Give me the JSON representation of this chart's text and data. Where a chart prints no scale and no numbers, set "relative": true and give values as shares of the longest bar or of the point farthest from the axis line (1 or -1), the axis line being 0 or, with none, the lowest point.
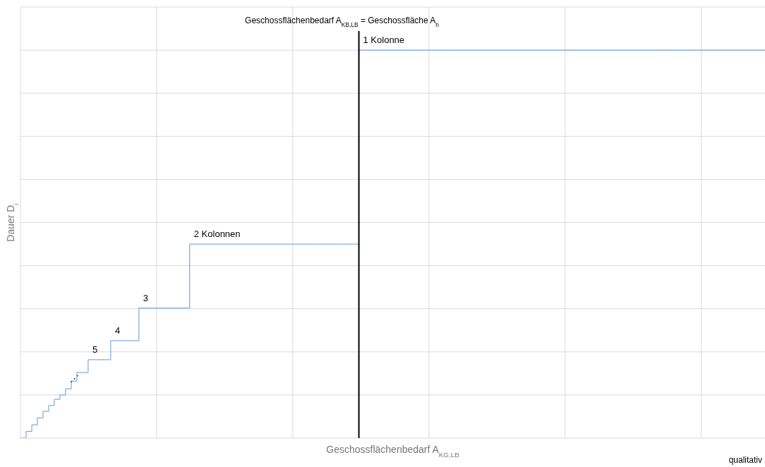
{
  "chart_data": {
    "type": "step",
    "relative": true,
    "xlabel": "Geschossflächenbedarf A$_{KG,LB}$",
    "ylabel": "Dauer D$_{i}$",
    "grid": true,
    "color": "#5b9bd5",
    "categories": [
      null,
      null,
      null,
      null,
      null,
      null,
      null,
      null,
      null,
      null,
      null,
      null,
      null,
      null,
      null,
      null,
      null,
      null,
      null,
      null,
      null,
      null,
      null,
      null,
      null,
      null,
      null,
      null,
      null,
      null,
      null,
      null,
      null,
      null,
      null,
      null,
      null,
      null,
      null,
      null,
      null,
      null,
      null,
      null,
      null,
      null,
      null,
      null,
      null,
      null,
      null,
      null,
      null,
      null,
      null,
      null,
      null,
      null,
      null,
      null,
      null,
      null,
      null,
      null,
      null,
      null,
      null,
      null,
      null,
      null,
      null,
      null,
      null,
      null,
      null,
      null,
      null,
      null,
      null,
      null,
      null,
      null,
      null,
      null,
      null,
      null,
      null,
      null,
      null,
      null,
      null,
      null,
      null,
      null,
      null,
      null,
      null,
      null,
      null,
      null,
      null,
      null,
      null,
      null,
      null,
      null,
      null,
      null,
      null,
      null,
      null,
      null,
      null,
      null,
      null,
      null,
      null,
      null,
      null,
      null,
      null,
      null,
      null,
      null,
      null,
      null,
      null,
      null,
      null,
      null,
      null,
      null,
      null
    ],
    "values": [
      0,
      0.017,
      0.034,
      0.052,
      0.069,
      0.084,
      0.1,
      0.111,
      0.127,
      0.147,
      0.169,
      0.169,
      0.202,
      0.202,
      0.202,
      0.202,
      0.251,
      0.251,
      0.251,
      0.251,
      0.251,
      0.335,
      0.335,
      0.335,
      0.335,
      0.335,
      0.335,
      0.335,
      0.335,
      0.335,
      0.5,
      0.5,
      0.5,
      0.5,
      0.5,
      0.5,
      0.5,
      0.5,
      0.5,
      0.5,
      0.5,
      0.5,
      0.5,
      0.5,
      0.5,
      0.5,
      0.5,
      0.5,
      0.5,
      0.5,
      0.5,
      0.5,
      0.5,
      0.5,
      0.5,
      0.5,
      0.5,
      0.5,
      0.5,
      0.5,
      1,
      1,
      1,
      1,
      1,
      1,
      1,
      1,
      1,
      1,
      1,
      1,
      1,
      1,
      1,
      1,
      1,
      1,
      1,
      1,
      1,
      1,
      1,
      1,
      1,
      1,
      1,
      1,
      1,
      1,
      1,
      1,
      1,
      1,
      1,
      1,
      1,
      1,
      1,
      1,
      1,
      1,
      1,
      1,
      1,
      1,
      1,
      1,
      1,
      1,
      1,
      1,
      1,
      1,
      1,
      1,
      1,
      1,
      1,
      1,
      1,
      1,
      1,
      1,
      1,
      1,
      1,
      1,
      1,
      1,
      1,
      1,
      1
    ],
    "annotations": [
      {
        "text": "1 Kolonne",
        "y": 1
      },
      {
        "text": "2 Kolonnen",
        "y": 0.5
      },
      {
        "text": "3",
        "y": 0.335
      },
      {
        "text": "4",
        "y": 0.251
      },
      {
        "text": "5",
        "y": 0.202
      },
      {
        "text": "⋰",
        "y": 0.127
      },
      "Geschossflächenbedarf A$_{KB,LB}$ = Geschossfläche A$_{n}$",
      "qualitativ"
    ]
  }
}
